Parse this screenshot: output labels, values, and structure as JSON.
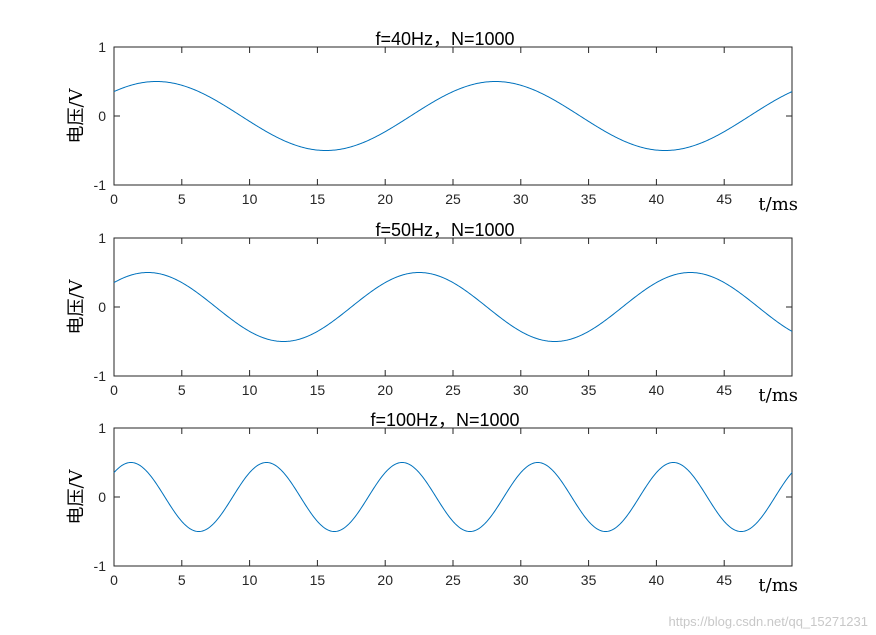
{
  "chart_data": [
    {
      "type": "line",
      "title": "f=40Hz，N=1000",
      "xlabel": "t/ms",
      "ylabel": "电压/V",
      "xlim": [
        0,
        50
      ],
      "ylim": [
        -1,
        1
      ],
      "xticks": [
        0,
        5,
        10,
        15,
        20,
        25,
        30,
        35,
        40,
        45
      ],
      "yticks": [
        -1,
        0,
        1
      ],
      "grid": false,
      "series": [
        {
          "amplitude": 0.5,
          "frequency_hz": 40,
          "phase_deg": 45,
          "color": "#0072bd",
          "x": [
            0,
            3.125,
            15.625,
            28.125,
            40.625,
            50
          ],
          "y": [
            0.354,
            0.5,
            -0.5,
            0.5,
            -0.5,
            0.354
          ]
        }
      ]
    },
    {
      "type": "line",
      "title": "f=50Hz，N=1000",
      "xlabel": "t/ms",
      "ylabel": "电压/V",
      "xlim": [
        0,
        50
      ],
      "ylim": [
        -1,
        1
      ],
      "xticks": [
        0,
        5,
        10,
        15,
        20,
        25,
        30,
        35,
        40,
        45
      ],
      "yticks": [
        -1,
        0,
        1
      ],
      "grid": false,
      "series": [
        {
          "amplitude": 0.5,
          "frequency_hz": 50,
          "phase_deg": 45,
          "color": "#0072bd",
          "x": [
            0,
            2.5,
            12.5,
            22.5,
            32.5,
            42.5,
            50
          ],
          "y": [
            0.354,
            0.5,
            -0.5,
            0.5,
            -0.5,
            0.5,
            -0.354
          ]
        }
      ]
    },
    {
      "type": "line",
      "title": "f=100Hz，N=1000",
      "xlabel": "t/ms",
      "ylabel": "电压/V",
      "xlim": [
        0,
        50
      ],
      "ylim": [
        -1,
        1
      ],
      "xticks": [
        0,
        5,
        10,
        15,
        20,
        25,
        30,
        35,
        40,
        45
      ],
      "yticks": [
        -1,
        0,
        1
      ],
      "grid": false,
      "series": [
        {
          "amplitude": 0.5,
          "frequency_hz": 100,
          "phase_deg": 45,
          "color": "#0072bd",
          "x": [
            0,
            1.25,
            6.25,
            11.25,
            16.25,
            21.25,
            26.25,
            31.25,
            36.25,
            41.25,
            46.25,
            50
          ],
          "y": [
            0.354,
            0.5,
            -0.5,
            0.5,
            -0.5,
            0.5,
            -0.5,
            0.5,
            -0.5,
            0.5,
            -0.5,
            0.354
          ]
        }
      ]
    }
  ],
  "watermark": "https://blog.csdn.net/qq_15271231"
}
